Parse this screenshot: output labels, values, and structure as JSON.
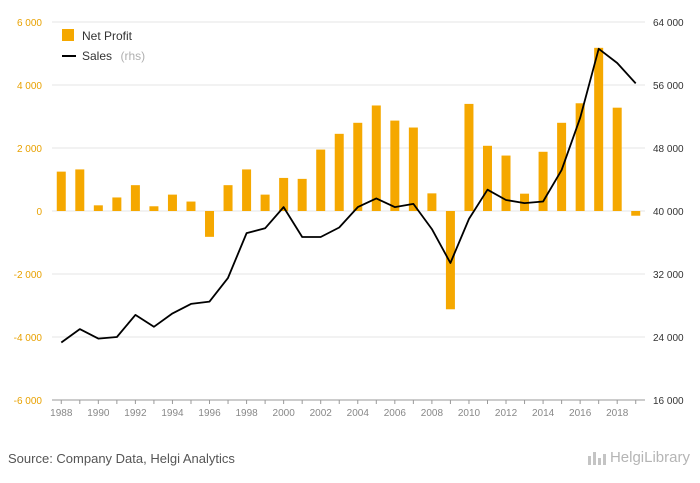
{
  "source": "Source: Company Data, Helgi Analytics",
  "logo": "HelgiLibrary",
  "legend": {
    "bar_label": "Net Profit",
    "line_label": "Sales",
    "line_sub": "(rhs)"
  },
  "colors": {
    "bar": "#f5a800",
    "line": "#000000",
    "axis_left": "#e8a100",
    "axis_right": "#333333"
  },
  "chart_data": {
    "type": "bar",
    "x": [
      1988,
      1989,
      1990,
      1991,
      1992,
      1993,
      1994,
      1995,
      1996,
      1997,
      1998,
      1999,
      2000,
      2001,
      2002,
      2003,
      2004,
      2005,
      2006,
      2007,
      2008,
      2009,
      2010,
      2011,
      2012,
      2013,
      2014,
      2015,
      2016,
      2017,
      2018,
      2019
    ],
    "x_tick_labels": [
      "1988",
      "1990",
      "1992",
      "1994",
      "1996",
      "1998",
      "2000",
      "2002",
      "2004",
      "2006",
      "2008",
      "2010",
      "2012",
      "2014",
      "2016",
      "2018"
    ],
    "y_left": {
      "range": [
        -6000,
        6000
      ],
      "ticks": [
        -6000,
        -4000,
        -2000,
        0,
        2000,
        4000,
        6000
      ],
      "tick_labels": [
        "-6 000",
        "-4 000",
        "-2 000",
        "0",
        "2 000",
        "4 000",
        "6 000"
      ]
    },
    "y_right": {
      "range": [
        16000,
        64000
      ],
      "ticks": [
        16000,
        24000,
        32000,
        40000,
        48000,
        56000,
        64000
      ],
      "tick_labels": [
        "16 000",
        "24 000",
        "32 000",
        "40 000",
        "48 000",
        "56 000",
        "64 000"
      ]
    },
    "series": [
      {
        "name": "Net Profit",
        "kind": "bar",
        "axis": "left",
        "values": [
          1250,
          1320,
          180,
          430,
          820,
          150,
          520,
          300,
          -820,
          820,
          1320,
          520,
          1050,
          1020,
          1950,
          2450,
          2800,
          3350,
          2870,
          2650,
          560,
          -3120,
          3400,
          2070,
          1760,
          550,
          1880,
          2800,
          3420,
          5180,
          3280,
          -150
        ]
      },
      {
        "name": "Sales",
        "kind": "line",
        "axis": "right",
        "values": [
          23300,
          25000,
          23800,
          24000,
          26800,
          25300,
          27000,
          28200,
          28500,
          31500,
          37200,
          37800,
          40500,
          36700,
          36700,
          37900,
          40500,
          41600,
          40500,
          40900,
          37700,
          33400,
          39000,
          42700,
          41400,
          41000,
          41200,
          45200,
          51800,
          60600,
          58800,
          56200
        ]
      }
    ]
  }
}
